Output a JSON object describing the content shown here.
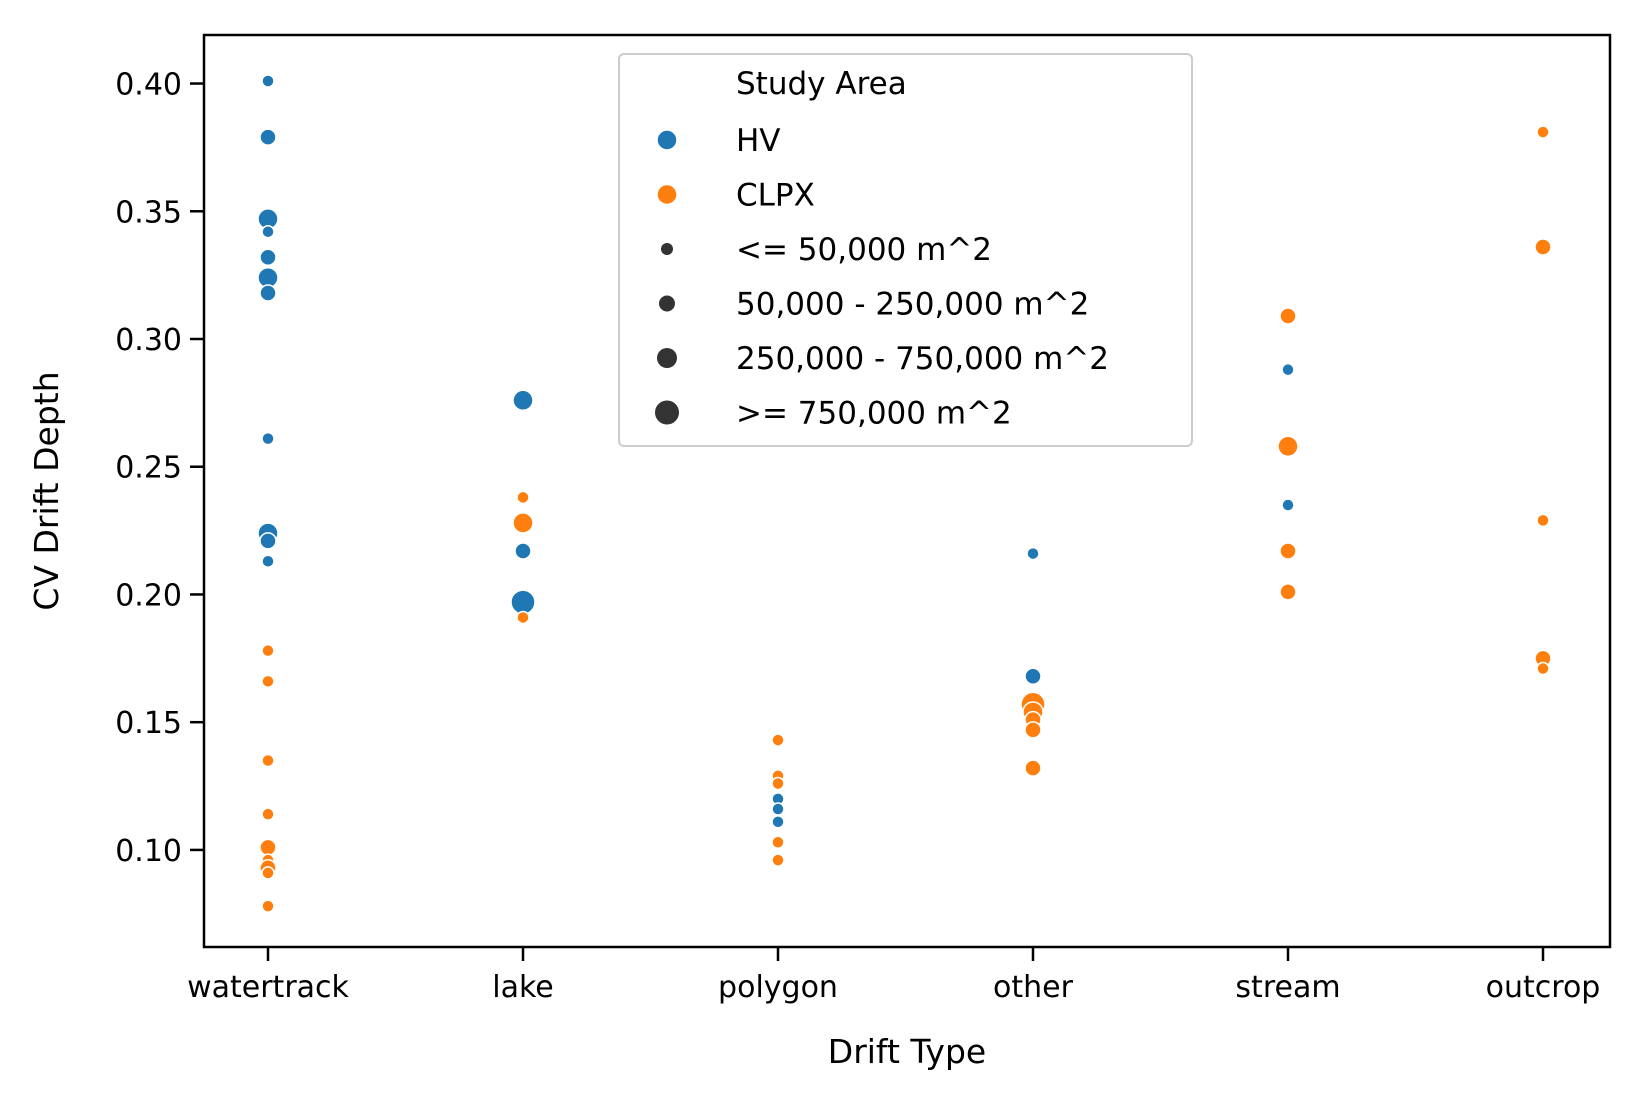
{
  "chart_data": {
    "type": "scatter",
    "xlabel": "Drift Type",
    "ylabel": "CV Drift Depth",
    "categories": [
      "watertrack",
      "lake",
      "polygon",
      "other",
      "stream",
      "outcrop"
    ],
    "ylim": [
      0.062,
      0.419
    ],
    "yticks": [
      "0.10",
      "0.15",
      "0.20",
      "0.25",
      "0.30",
      "0.35",
      "0.40"
    ],
    "grid": false,
    "legend": {
      "placement": "top-center",
      "title": "Study Area",
      "hue_entries": [
        {
          "label": "HV",
          "color": "#1f77b4"
        },
        {
          "label": "CLPX",
          "color": "#ff7f0e"
        }
      ],
      "size_entries": [
        {
          "label": " <= 50,000 m^2",
          "size": 1
        },
        {
          "label": "50,000 - 250,000 m^2",
          "size": 2
        },
        {
          "label": "250,000 - 750,000 m^2",
          "size": 3
        },
        {
          "label": ">= 750,000 m^2",
          "size": 4
        }
      ]
    },
    "series": [
      {
        "name": "HV",
        "color": "#1f77b4",
        "points": [
          {
            "x": "watertrack",
            "y": 0.401,
            "size": 1
          },
          {
            "x": "watertrack",
            "y": 0.379,
            "size": 2
          },
          {
            "x": "watertrack",
            "y": 0.347,
            "size": 3
          },
          {
            "x": "watertrack",
            "y": 0.342,
            "size": 1
          },
          {
            "x": "watertrack",
            "y": 0.332,
            "size": 2
          },
          {
            "x": "watertrack",
            "y": 0.324,
            "size": 3
          },
          {
            "x": "watertrack",
            "y": 0.318,
            "size": 2
          },
          {
            "x": "watertrack",
            "y": 0.261,
            "size": 1
          },
          {
            "x": "watertrack",
            "y": 0.224,
            "size": 3
          },
          {
            "x": "watertrack",
            "y": 0.221,
            "size": 2
          },
          {
            "x": "watertrack",
            "y": 0.213,
            "size": 1
          },
          {
            "x": "lake",
            "y": 0.276,
            "size": 3
          },
          {
            "x": "lake",
            "y": 0.217,
            "size": 2
          },
          {
            "x": "lake",
            "y": 0.197,
            "size": 4
          },
          {
            "x": "polygon",
            "y": 0.12,
            "size": 1
          },
          {
            "x": "polygon",
            "y": 0.116,
            "size": 1
          },
          {
            "x": "polygon",
            "y": 0.111,
            "size": 1
          },
          {
            "x": "other",
            "y": 0.216,
            "size": 1
          },
          {
            "x": "other",
            "y": 0.168,
            "size": 2
          },
          {
            "x": "stream",
            "y": 0.288,
            "size": 1
          },
          {
            "x": "stream",
            "y": 0.235,
            "size": 1
          }
        ]
      },
      {
        "name": "CLPX",
        "color": "#ff7f0e",
        "points": [
          {
            "x": "watertrack",
            "y": 0.178,
            "size": 1
          },
          {
            "x": "watertrack",
            "y": 0.166,
            "size": 1
          },
          {
            "x": "watertrack",
            "y": 0.135,
            "size": 1
          },
          {
            "x": "watertrack",
            "y": 0.114,
            "size": 1
          },
          {
            "x": "watertrack",
            "y": 0.101,
            "size": 2
          },
          {
            "x": "watertrack",
            "y": 0.096,
            "size": 1
          },
          {
            "x": "watertrack",
            "y": 0.093,
            "size": 2
          },
          {
            "x": "watertrack",
            "y": 0.091,
            "size": 1
          },
          {
            "x": "watertrack",
            "y": 0.078,
            "size": 1
          },
          {
            "x": "lake",
            "y": 0.238,
            "size": 1
          },
          {
            "x": "lake",
            "y": 0.228,
            "size": 3
          },
          {
            "x": "lake",
            "y": 0.191,
            "size": 1
          },
          {
            "x": "polygon",
            "y": 0.143,
            "size": 1
          },
          {
            "x": "polygon",
            "y": 0.129,
            "size": 1
          },
          {
            "x": "polygon",
            "y": 0.126,
            "size": 1
          },
          {
            "x": "polygon",
            "y": 0.103,
            "size": 1
          },
          {
            "x": "polygon",
            "y": 0.096,
            "size": 1
          },
          {
            "x": "other",
            "y": 0.157,
            "size": 4
          },
          {
            "x": "other",
            "y": 0.154,
            "size": 3
          },
          {
            "x": "other",
            "y": 0.151,
            "size": 2
          },
          {
            "x": "other",
            "y": 0.147,
            "size": 2
          },
          {
            "x": "other",
            "y": 0.132,
            "size": 2
          },
          {
            "x": "stream",
            "y": 0.309,
            "size": 2
          },
          {
            "x": "stream",
            "y": 0.258,
            "size": 3
          },
          {
            "x": "stream",
            "y": 0.217,
            "size": 2
          },
          {
            "x": "stream",
            "y": 0.201,
            "size": 2
          },
          {
            "x": "outcrop",
            "y": 0.381,
            "size": 1
          },
          {
            "x": "outcrop",
            "y": 0.336,
            "size": 2
          },
          {
            "x": "outcrop",
            "y": 0.229,
            "size": 1
          },
          {
            "x": "outcrop",
            "y": 0.175,
            "size": 2
          },
          {
            "x": "outcrop",
            "y": 0.171,
            "size": 1
          }
        ]
      }
    ]
  }
}
